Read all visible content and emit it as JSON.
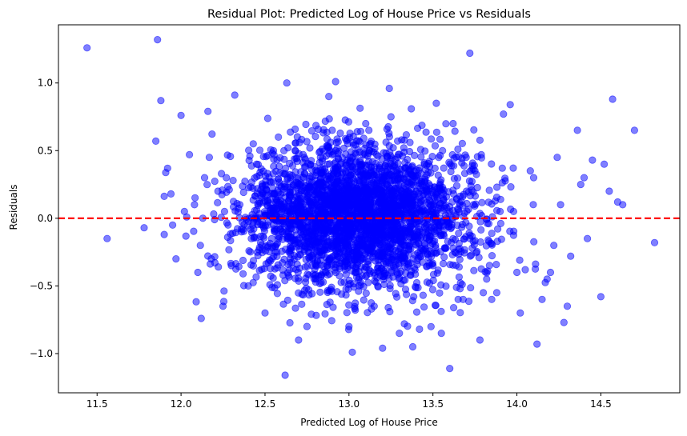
{
  "chart_data": {
    "type": "scatter",
    "title": "Residual Plot: Predicted Log of House Price vs Residuals",
    "xlabel": "Predicted Log of House Price",
    "ylabel": "Residuals",
    "xlim": [
      11.27,
      14.97
    ],
    "ylim": [
      -1.29,
      1.43
    ],
    "xticks": [
      11.5,
      12.0,
      12.5,
      13.0,
      13.5,
      14.0,
      14.5
    ],
    "yticks": [
      -1.0,
      -0.5,
      0.0,
      0.5,
      1.0
    ],
    "xtick_labels": [
      "11.5",
      "12.0",
      "12.5",
      "13.0",
      "13.5",
      "14.0",
      "14.5"
    ],
    "ytick_labels": [
      "−1.0",
      "−0.5",
      "0.0",
      "0.5",
      "1.0"
    ],
    "grid": false,
    "point_color": "#0000ff",
    "reference_line": {
      "y": 0,
      "color": "#ff0000",
      "style": "dashed"
    },
    "points": {
      "x": [
        11.44,
        11.86,
        12.63,
        12.92,
        13.24,
        13.72,
        11.88,
        12.0,
        12.32,
        12.16,
        13.96,
        14.57,
        14.7,
        14.82,
        11.56,
        11.78,
        11.95,
        12.08,
        12.2,
        12.28,
        12.36,
        12.62,
        13.02,
        13.2,
        13.38,
        13.6,
        13.78,
        14.12,
        14.28,
        14.5,
        11.85,
        11.92,
        12.05,
        12.43,
        12.88,
        13.1,
        13.52,
        13.92,
        14.24,
        14.36,
        14.4,
        14.45,
        14.52,
        14.6,
        14.63,
        14.55,
        14.08,
        13.85,
        12.7,
        13.3,
        12.12,
        12.5,
        12.75,
        13.42,
        13.65,
        13.88,
        14.02,
        14.15,
        14.3,
        14.2,
        12.25,
        12.4,
        13.0,
        13.15,
        13.33,
        13.55,
        13.68,
        13.8,
        14.05,
        14.18,
        14.32,
        12.58,
        12.9,
        13.25,
        13.62,
        12.02,
        12.14,
        11.9,
        11.97,
        12.18,
        12.3,
        12.45,
        12.55,
        12.83,
        13.12,
        13.45,
        13.75,
        14.1,
        14.38,
        14.42,
        14.26,
        13.98,
        12.22,
        12.67,
        12.96,
        13.36,
        13.7,
        12.1,
        11.94,
        12.8,
        13.06,
        13.48,
        13.82,
        14.0,
        14.22,
        12.35,
        12.48,
        12.6,
        12.73,
        12.86,
        12.99,
        13.18,
        13.28,
        13.4,
        13.58,
        13.72,
        13.9,
        12.27,
        12.52,
        12.78,
        13.08,
        13.35,
        13.63,
        12.95,
        12.65,
        13.22,
        13.5
      ],
      "y": [
        1.26,
        1.32,
        1.0,
        1.01,
        0.96,
        1.22,
        0.87,
        0.76,
        0.91,
        0.79,
        0.84,
        0.88,
        0.65,
        -0.18,
        -0.15,
        -0.07,
        -0.05,
        0.1,
        -0.01,
        -0.05,
        -0.1,
        -1.16,
        -0.99,
        -0.96,
        -0.95,
        -1.11,
        -0.9,
        -0.93,
        -0.77,
        -0.58,
        0.57,
        0.37,
        0.47,
        0.55,
        0.9,
        0.7,
        0.85,
        0.77,
        0.45,
        0.65,
        0.3,
        0.43,
        0.4,
        0.12,
        0.1,
        0.2,
        0.35,
        -0.6,
        -0.9,
        -0.85,
        -0.74,
        -0.7,
        -0.8,
        -0.82,
        -0.6,
        -0.55,
        -0.7,
        -0.6,
        -0.65,
        -0.4,
        -0.65,
        -0.5,
        -0.8,
        -0.65,
        -0.78,
        -0.85,
        -0.6,
        -0.55,
        -0.38,
        -0.45,
        -0.28,
        0.6,
        0.65,
        0.75,
        0.7,
        0.05,
        0.3,
        -0.12,
        -0.3,
        -0.3,
        -0.35,
        0.4,
        0.5,
        0.45,
        0.5,
        0.4,
        0.35,
        0.3,
        0.25,
        -0.15,
        0.1,
        0.05,
        0.2,
        0.25,
        0.3,
        0.35,
        0.2,
        -0.4,
        0.18,
        -0.45,
        -0.5,
        -0.48,
        -0.45,
        -0.4,
        -0.2,
        0.1,
        0.15,
        0.05,
        -0.1,
        0.1,
        0.15,
        -0.05,
        0.1,
        0.2,
        0.0,
        -0.15,
        0.05,
        0.3,
        -0.2,
        -0.35,
        -0.3,
        0.25,
        -0.25,
        0.0,
        0.05,
        -0.05,
        0.1
      ]
    },
    "cloud": {
      "n": 3200,
      "x_mean": 13.05,
      "x_sd": 0.34,
      "y_mean": 0.02,
      "y_sd": 0.26,
      "seed": 7
    }
  }
}
